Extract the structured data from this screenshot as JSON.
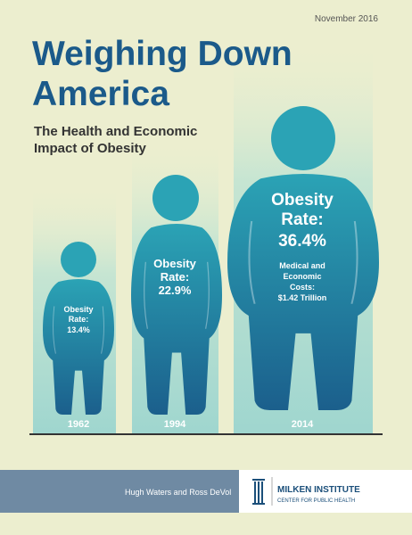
{
  "date": "November 2016",
  "title": [
    "Weighing Down",
    "America"
  ],
  "subtitle": [
    "The Health and Economic",
    "Impact of Obesity"
  ],
  "figures": [
    {
      "year": "1962",
      "label": [
        "Obesity",
        "Rate:"
      ],
      "rate": "13.4%"
    },
    {
      "year": "1994",
      "label": [
        "Obesity",
        "Rate:"
      ],
      "rate": "22.9%"
    },
    {
      "year": "2014",
      "label": [
        "Obesity",
        "Rate:"
      ],
      "rate": "36.4%",
      "note": [
        "Medical and",
        "Economic",
        "Costs:",
        "$1.42 Trillion"
      ]
    }
  ],
  "footer": {
    "authors": "Hugh Waters and Ross DeVol",
    "org": "MILKEN INSTITUTE",
    "org_sub": "CENTER FOR PUBLIC HEALTH"
  }
}
